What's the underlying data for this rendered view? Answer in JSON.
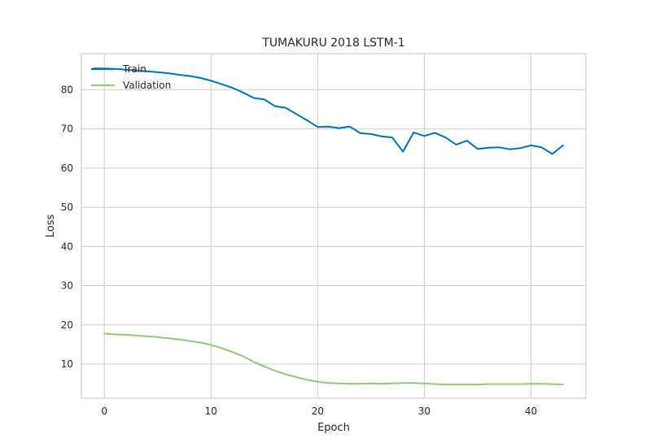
{
  "chart_data": {
    "type": "line",
    "title": "TUMAKURU 2018 LSTM-1",
    "xlabel": "Epoch",
    "ylabel": "Loss",
    "xlim": [
      -2.15,
      45.15
    ],
    "ylim": [
      1.3,
      89.2
    ],
    "xticks": [
      0,
      10,
      20,
      30,
      40
    ],
    "yticks": [
      10,
      20,
      30,
      40,
      50,
      60,
      70,
      80
    ],
    "grid": true,
    "legend_position": "top-left",
    "series": [
      {
        "name": "Train",
        "color": "#0072b2",
        "x": [
          -1,
          0,
          1,
          2,
          3,
          4,
          5,
          6,
          7,
          8,
          9,
          10,
          11,
          12,
          13,
          14,
          15,
          16,
          17,
          18,
          19,
          20,
          21,
          22,
          23,
          24,
          25,
          26,
          27,
          28,
          29,
          30,
          31,
          32,
          33,
          34,
          35,
          36,
          37,
          38,
          39,
          40,
          41,
          42,
          43
        ],
        "values": [
          85.4,
          85.4,
          85.3,
          85.1,
          84.9,
          84.7,
          84.5,
          84.2,
          83.8,
          83.5,
          83.0,
          82.3,
          81.4,
          80.5,
          79.3,
          77.9,
          77.5,
          75.8,
          75.4,
          73.8,
          72.2,
          70.5,
          70.6,
          70.2,
          70.6,
          68.9,
          68.7,
          68.1,
          67.8,
          64.2,
          69.1,
          68.2,
          69.0,
          67.8,
          66.0,
          67.0,
          64.9,
          65.2,
          65.3,
          64.8,
          65.1,
          65.8,
          65.3,
          63.6,
          65.8
        ]
      },
      {
        "name": "Validation",
        "color": "#95c47b",
        "x": [
          0,
          1,
          2,
          3,
          4,
          5,
          6,
          7,
          8,
          9,
          10,
          11,
          12,
          13,
          14,
          15,
          16,
          17,
          18,
          19,
          20,
          21,
          22,
          23,
          24,
          25,
          26,
          27,
          28,
          29,
          30,
          31,
          32,
          33,
          34,
          35,
          36,
          37,
          38,
          39,
          40,
          41,
          42,
          43
        ],
        "values": [
          17.8,
          17.6,
          17.5,
          17.3,
          17.1,
          16.9,
          16.6,
          16.3,
          15.9,
          15.5,
          14.9,
          14.1,
          13.1,
          12.0,
          10.6,
          9.4,
          8.3,
          7.4,
          6.7,
          6.0,
          5.5,
          5.2,
          5.1,
          5.0,
          5.0,
          5.1,
          5.0,
          5.1,
          5.2,
          5.2,
          5.1,
          4.9,
          4.8,
          4.8,
          4.8,
          4.8,
          4.9,
          4.9,
          4.9,
          4.9,
          5.0,
          5.0,
          4.9,
          4.8
        ]
      }
    ]
  }
}
